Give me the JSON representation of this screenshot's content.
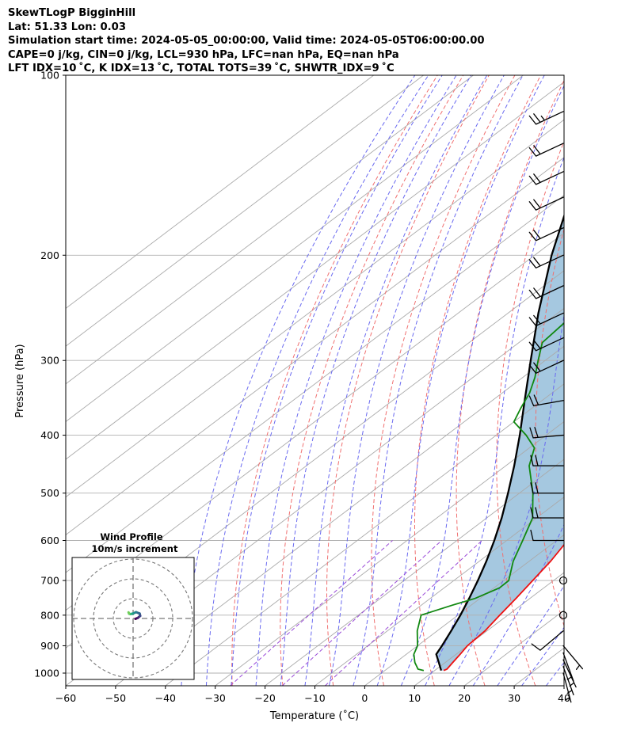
{
  "header": {
    "line1": "SkewTLogP BigginHill",
    "line2": "Lat: 51.33   Lon: 0.03",
    "line3": "Simulation start time: 2024-05-05_00:00:00, Valid time: 2024-05-05T06:00:00.00",
    "line4": "CAPE=0 j/kg, CIN=0 j/kg, LCL=930 hPa, LFC=nan hPa, EQ=nan hPa",
    "line5": "LFT IDX=10 ˚C, K IDX=13 ˚C, TOTAL TOTS=39 ˚C, SHWTR_IDX=9 ˚C"
  },
  "chart_data": {
    "type": "line",
    "subtype": "skew-t log-p",
    "xlabel": "Temperature (˚C)",
    "ylabel": "Pressure (hPa)",
    "xlim": [
      -60,
      40
    ],
    "ylim": [
      1050,
      100
    ],
    "y_scale": "log",
    "x_ticks": [
      "−60",
      "−50",
      "−40",
      "−30",
      "−20",
      "−10",
      "0",
      "10",
      "20",
      "30",
      "40"
    ],
    "y_ticks": [
      "100",
      "200",
      "300",
      "400",
      "500",
      "600",
      "700",
      "800",
      "900",
      "1000"
    ],
    "grid": true,
    "colors": {
      "temperature": "#ee1111",
      "dewpoint": "#118811",
      "parcel": "#000000",
      "shading": "#a5c8e0",
      "dry_adiabats": "#f07070",
      "moist_adiabats": "#6a6af0",
      "mixing_ratio": "#9a4ad8",
      "isotherms": "#aaaaaa"
    },
    "series": [
      {
        "key": "temperature",
        "pressure": [
          990,
          985,
          960,
          930,
          900,
          850,
          800,
          750,
          700,
          650,
          600,
          550,
          500,
          450,
          400,
          350,
          320,
          300,
          280,
          260,
          250,
          240,
          230,
          220,
          210,
          200,
          190,
          180,
          170,
          160,
          150,
          140,
          130,
          120,
          110,
          100
        ],
        "values": [
          11.8,
          12.1,
          11.5,
          10.8,
          10.0,
          9.6,
          8.4,
          7.2,
          5.8,
          4.3,
          2.2,
          -0.8,
          -4.8,
          -10.0,
          -16.5,
          -23.4,
          -27.9,
          -31.4,
          -34.5,
          -35.7,
          -34.9,
          -33.7,
          -32.9,
          -32.3,
          -30.3,
          -28.3,
          -25.8,
          -23.4,
          -21.0,
          -19.5,
          -18.2,
          -16.9,
          -15.6,
          -14.4,
          -12.6,
          -10.9
        ]
      },
      {
        "key": "dewpoint",
        "pressure": [
          990,
          985,
          960,
          930,
          900,
          850,
          800,
          770,
          750,
          720,
          700,
          650,
          600,
          550,
          500,
          450,
          420,
          400,
          380,
          360,
          340,
          320,
          300,
          280,
          260,
          250,
          240,
          220,
          210,
          200,
          190,
          180,
          170,
          160,
          150,
          140,
          130,
          120,
          110,
          100
        ],
        "values": [
          7.8,
          6.3,
          3.9,
          1.5,
          0.0,
          -4.0,
          -7.4,
          -3.8,
          -1.0,
          1.1,
          1.0,
          -3.2,
          -6.8,
          -10.8,
          -17.3,
          -25.3,
          -29.0,
          -34.0,
          -40.0,
          -42.3,
          -44.5,
          -47.6,
          -51.4,
          -55.3,
          -56.1,
          -55.0,
          -55.2,
          -57.1,
          -58.4,
          -59.5,
          -60.5,
          -62.0,
          -62.5,
          -63.0,
          -63.5,
          -63.0,
          -62.5,
          -62.0,
          -61.5,
          -61.0
        ]
      },
      {
        "key": "parcel",
        "pressure": [
          990,
          960,
          930,
          900,
          850,
          800,
          750,
          700,
          650,
          600,
          550,
          500,
          450,
          400,
          350,
          300,
          250,
          200,
          150,
          100
        ],
        "values": [
          11.3,
          8.7,
          6.0,
          4.9,
          2.8,
          0.5,
          -2.2,
          -5.2,
          -8.6,
          -12.5,
          -17.0,
          -22.3,
          -28.3,
          -35.3,
          -43.5,
          -52.9,
          -63.9,
          -76.6,
          -91.6,
          -110.9
        ]
      }
    ],
    "wind_barbs": {
      "pressure": [
        1000,
        975,
        950,
        925,
        900,
        850,
        800,
        700,
        600,
        550,
        500,
        450,
        400,
        350,
        300,
        275,
        250,
        225,
        200,
        180,
        160,
        145,
        130,
        115
      ],
      "speed_kt": [
        5,
        5,
        5,
        5,
        5,
        10,
        0,
        0,
        10,
        20,
        20,
        20,
        20,
        20,
        20,
        20,
        20,
        20,
        20,
        20,
        20,
        20,
        20,
        25
      ],
      "direction_deg": [
        165,
        160,
        155,
        160,
        140,
        230,
        0,
        0,
        270,
        270,
        270,
        270,
        265,
        260,
        245,
        245,
        245,
        245,
        245,
        245,
        245,
        245,
        245,
        245
      ]
    },
    "inset": {
      "title": "Wind Profile",
      "subtitle": "10m/s increment",
      "rings": 3,
      "hodograph_u": [
        1.2,
        2.4,
        3.6,
        3.3,
        1.5,
        0.0,
        -1.3,
        -2.0,
        -2.3
      ],
      "hodograph_v": [
        -0.2,
        0.3,
        1.3,
        2.5,
        3.2,
        2.5,
        2.2,
        2.4,
        3.1
      ]
    }
  }
}
